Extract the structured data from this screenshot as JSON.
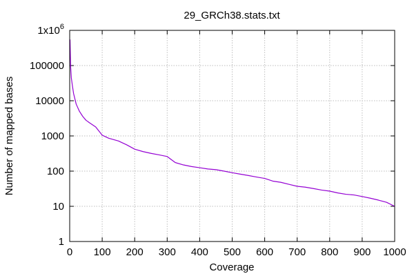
{
  "chart_data": {
    "type": "line",
    "title": "29_GRCh38.stats.txt",
    "xlabel": "Coverage",
    "ylabel": "Number of mapped bases",
    "xlim": [
      0,
      1000
    ],
    "ylim": [
      1,
      1000000
    ],
    "yscale": "log",
    "grid": true,
    "x_ticks": [
      0,
      100,
      200,
      300,
      400,
      500,
      600,
      700,
      800,
      900,
      1000
    ],
    "x_tick_labels": [
      "0",
      "100",
      "200",
      "300",
      "400",
      "500",
      "600",
      "700",
      "800",
      "900",
      "1000"
    ],
    "y_ticks": [
      1,
      10,
      100,
      1000,
      10000,
      100000,
      1000000
    ],
    "y_tick_labels": [
      "1",
      "10",
      "100",
      "1000",
      "10000",
      "100000",
      "1x10^6"
    ],
    "series": [
      {
        "color": "#9400d3",
        "x": [
          1,
          2,
          3,
          5,
          8,
          12,
          20,
          30,
          40,
          50,
          60,
          80,
          100,
          120,
          150,
          175,
          200,
          225,
          250,
          275,
          300,
          325,
          350,
          375,
          400,
          425,
          450,
          475,
          500,
          525,
          550,
          575,
          600,
          625,
          650,
          675,
          700,
          725,
          750,
          775,
          800,
          825,
          850,
          875,
          900,
          925,
          950,
          975,
          1000
        ],
        "y": [
          550000,
          220000,
          90000,
          45000,
          28000,
          16000,
          8000,
          5000,
          3600,
          2800,
          2400,
          1800,
          1050,
          860,
          720,
          560,
          420,
          360,
          320,
          290,
          260,
          175,
          150,
          135,
          125,
          115,
          110,
          100,
          90,
          82,
          75,
          68,
          62,
          52,
          48,
          42,
          37,
          35,
          32,
          29,
          27,
          24,
          22,
          21,
          19,
          17,
          15,
          13,
          10
        ]
      }
    ]
  }
}
